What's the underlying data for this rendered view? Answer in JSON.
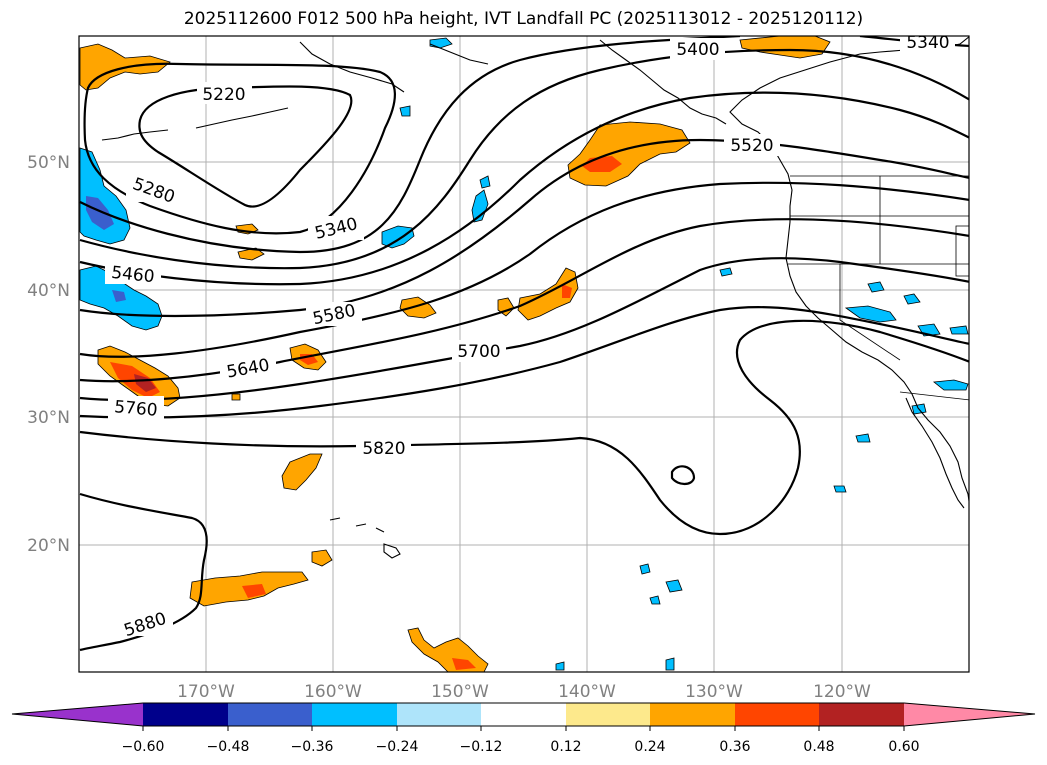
{
  "title": "2025112600 F012 500 hPa height, IVT Landfall PC (2025113012 - 2025120112)",
  "lat_labels": [
    "50°N",
    "40°N",
    "30°N",
    "20°N"
  ],
  "lon_labels": [
    "170°W",
    "160°W",
    "150°W",
    "140°W",
    "130°W",
    "120°W"
  ],
  "contour_labels": [
    "5220",
    "5280",
    "5340",
    "5400",
    "5340",
    "5460",
    "5520",
    "5580",
    "5640",
    "5700",
    "5760",
    "5820",
    "5880"
  ],
  "colorbar": {
    "ticks": [
      "−0.60",
      "−0.48",
      "−0.36",
      "−0.24",
      "−0.12",
      "0.12",
      "0.24",
      "0.36",
      "0.48",
      "0.60"
    ],
    "colors": [
      "#9932cc",
      "#00008b",
      "#3a5fcd",
      "#00bfff",
      "#aee4fa",
      "#ffffff",
      "#fde98c",
      "#ffa500",
      "#ff4500",
      "#b22222",
      "#ff89a6"
    ]
  },
  "fill_colors": {
    "orange": "#ffa500",
    "red_orange": "#ff4500",
    "dark_red": "#b22222",
    "sky_blue": "#00bfff",
    "royal_blue": "#3a5fcd"
  }
}
